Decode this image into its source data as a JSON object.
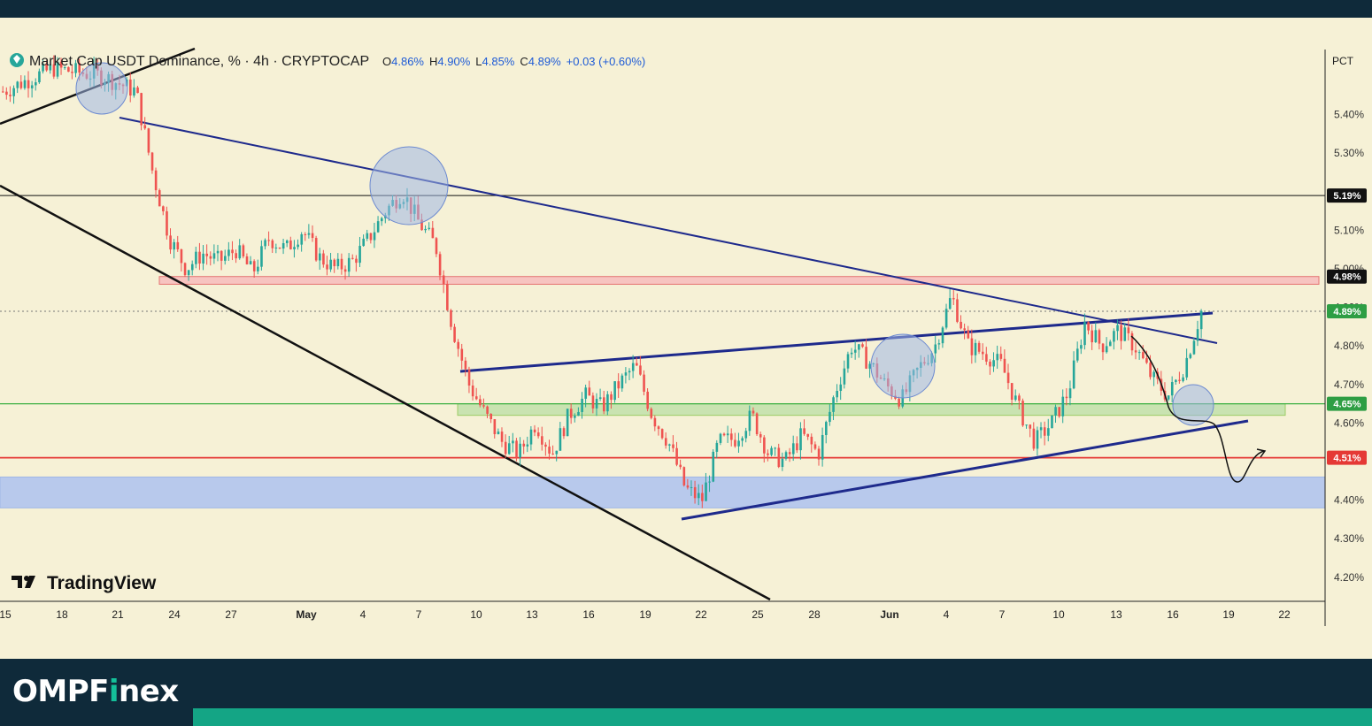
{
  "header": {
    "symbol_icon": "diamond-badge-icon",
    "title": "Market Cap USDT Dominance, % · 4h · CRYPTOCAP",
    "ohlc": {
      "o_label": "O",
      "o": "4.86%",
      "h_label": "H",
      "h": "4.90%",
      "l_label": "L",
      "l": "4.85%",
      "c_label": "C",
      "c": "4.89%",
      "change": "+0.03 (+0.60%)"
    }
  },
  "axis": {
    "unit_label": "PCT"
  },
  "watermark": "TradingView",
  "footer": {
    "brand_prefix": "OMPF",
    "brand_mid": "i",
    "brand_suffix": "nex"
  },
  "colors": {
    "background": "#f6f1d6",
    "up": "#26a69a",
    "down": "#ef5350",
    "trend_blue": "#1e2a8c",
    "support_green": "#3cb043",
    "support_red": "#e53935",
    "zone_blue": "#9fb6e6",
    "brand_accent": "#14a585"
  },
  "chart_data": {
    "type": "candlestick",
    "title": "Market Cap USDT Dominance",
    "timeframe": "4h",
    "ylabel": "PCT",
    "ylim": [
      4.16,
      5.56
    ],
    "y_ticks": [
      "5.40%",
      "5.30%",
      "5.10%",
      "5.00%",
      "4.90%",
      "4.80%",
      "4.70%",
      "4.60%",
      "4.40%",
      "4.30%",
      "4.20%"
    ],
    "x_ticks": [
      "15",
      "18",
      "21",
      "24",
      "27",
      "May",
      "4",
      "7",
      "10",
      "13",
      "16",
      "19",
      "22",
      "25",
      "28",
      "Jun",
      "4",
      "7",
      "10",
      "13",
      "16",
      "19",
      "22"
    ],
    "price_labels": [
      {
        "value": 5.19,
        "text": "5.19%",
        "style": "black"
      },
      {
        "value": 4.98,
        "text": "4.98%",
        "style": "black"
      },
      {
        "value": 4.89,
        "text": "4.89%",
        "style": "green"
      },
      {
        "value": 4.65,
        "text": "4.65%",
        "style": "green"
      },
      {
        "value": 4.51,
        "text": "4.51%",
        "style": "red"
      }
    ],
    "close_path": [
      [
        0,
        5.46
      ],
      [
        3,
        5.52
      ],
      [
        6,
        5.5
      ],
      [
        8,
        5.46
      ],
      [
        9,
        5.25
      ],
      [
        10,
        5.08
      ],
      [
        11,
        5.0
      ],
      [
        12,
        5.04
      ],
      [
        13,
        5.02
      ],
      [
        14,
        5.05
      ],
      [
        15,
        4.99
      ],
      [
        16,
        5.08
      ],
      [
        17,
        5.05
      ],
      [
        18,
        5.1
      ],
      [
        19,
        5.03
      ],
      [
        20,
        5.0
      ],
      [
        21,
        5.02
      ],
      [
        22,
        5.08
      ],
      [
        23,
        5.15
      ],
      [
        24,
        5.2
      ],
      [
        25,
        5.12
      ],
      [
        26,
        5.06
      ],
      [
        27,
        4.85
      ],
      [
        28,
        4.7
      ],
      [
        29,
        4.62
      ],
      [
        30,
        4.55
      ],
      [
        31,
        4.52
      ],
      [
        32,
        4.6
      ],
      [
        33,
        4.52
      ],
      [
        34,
        4.62
      ],
      [
        35,
        4.67
      ],
      [
        36,
        4.64
      ],
      [
        37,
        4.7
      ],
      [
        38,
        4.75
      ],
      [
        39,
        4.62
      ],
      [
        40,
        4.55
      ],
      [
        41,
        4.43
      ],
      [
        42,
        4.4
      ],
      [
        43,
        4.55
      ],
      [
        44,
        4.56
      ],
      [
        45,
        4.62
      ],
      [
        46,
        4.52
      ],
      [
        47,
        4.5
      ],
      [
        48,
        4.57
      ],
      [
        49,
        4.52
      ],
      [
        50,
        4.68
      ],
      [
        51,
        4.8
      ],
      [
        52,
        4.76
      ],
      [
        53,
        4.7
      ],
      [
        54,
        4.66
      ],
      [
        55,
        4.74
      ],
      [
        56,
        4.8
      ],
      [
        57,
        4.93
      ],
      [
        58,
        4.8
      ],
      [
        59,
        4.78
      ],
      [
        60,
        4.75
      ],
      [
        61,
        4.64
      ],
      [
        62,
        4.55
      ],
      [
        63,
        4.6
      ],
      [
        64,
        4.68
      ],
      [
        65,
        4.86
      ],
      [
        66,
        4.8
      ],
      [
        67,
        4.84
      ],
      [
        68,
        4.8
      ],
      [
        69,
        4.72
      ],
      [
        70,
        4.67
      ],
      [
        71,
        4.75
      ],
      [
        72,
        4.89
      ]
    ],
    "zones": [
      {
        "name": "resistance",
        "from": 4.96,
        "to": 4.98,
        "color": "red"
      },
      {
        "name": "support",
        "from": 4.62,
        "to": 4.65,
        "color": "green"
      },
      {
        "name": "demand",
        "from": 4.38,
        "to": 4.46,
        "color": "blue"
      }
    ],
    "horizontal_lines": [
      5.19,
      4.65,
      4.51,
      4.89
    ],
    "annotations": [
      "trendlines",
      "highlight-circles",
      "projected-path-arrow"
    ]
  }
}
